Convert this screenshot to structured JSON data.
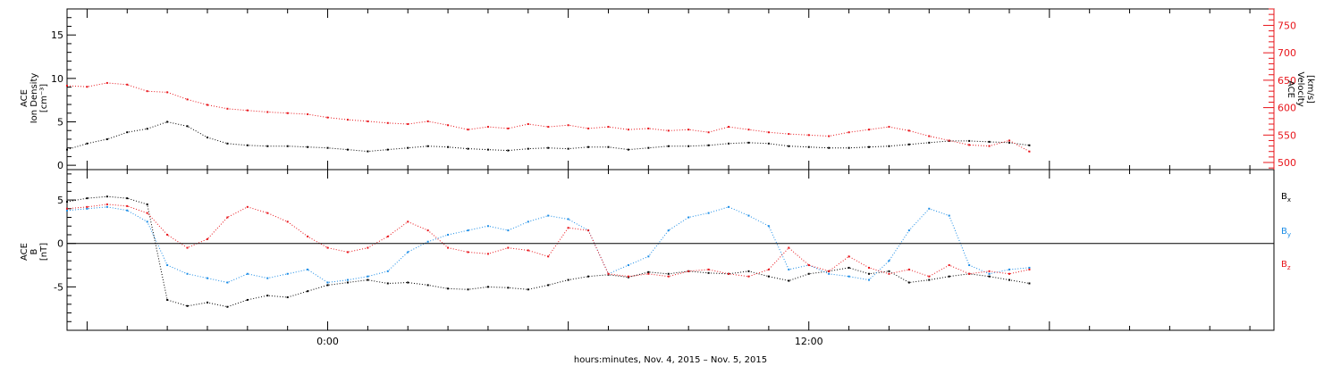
{
  "colors": {
    "black": "#000000",
    "red": "#e8141a",
    "blue": "#1a8ce6",
    "axis_red": "#e8141a"
  },
  "x_axis": {
    "title": "hours:minutes, Nov.  4, 2015 – Nov.  5, 2015",
    "range_hours": [
      -6.5,
      23.6
    ],
    "tick_labels": [
      {
        "hours": 0,
        "label": "0:00"
      },
      {
        "hours": 12,
        "label": "12:00"
      }
    ]
  },
  "chart_data": [
    {
      "type": "scatter",
      "panel": "top",
      "left_ylabel": [
        "ACE",
        "Ion Density",
        "[cm⁻³]"
      ],
      "right_ylabel": [
        "ACE",
        "Velocity",
        "[km/s]"
      ],
      "left_ylim": [
        -0.5,
        18
      ],
      "left_ticks": [
        0,
        5,
        10,
        15
      ],
      "right_ylim": [
        487,
        780
      ],
      "right_ticks": [
        500,
        550,
        600,
        650,
        700,
        750
      ],
      "series": [
        {
          "axis": "left",
          "color": "black",
          "x": [
            -6.5,
            -6,
            -5.5,
            -5,
            -4.5,
            -4,
            -3.5,
            -3,
            -2.5,
            -2,
            -1.5,
            -1,
            -0.5,
            0,
            0.5,
            1,
            1.5,
            2,
            2.5,
            3,
            3.5,
            4,
            4.5,
            5,
            5.5,
            6,
            6.5,
            7,
            7.5,
            8,
            8.5,
            9,
            9.5,
            10,
            10.5,
            11,
            11.5,
            12,
            12.5,
            13,
            13.5,
            14,
            14.5,
            15,
            15.5,
            16,
            16.5,
            17,
            17.5
          ],
          "y": [
            1.8,
            2.5,
            3,
            3.8,
            4.2,
            5,
            4.5,
            3.2,
            2.5,
            2.3,
            2.2,
            2.2,
            2.1,
            2,
            1.8,
            1.6,
            1.8,
            2,
            2.2,
            2.1,
            1.9,
            1.8,
            1.7,
            1.9,
            2,
            1.9,
            2.1,
            2.1,
            1.8,
            2,
            2.2,
            2.2,
            2.3,
            2.5,
            2.6,
            2.5,
            2.2,
            2.1,
            2,
            2,
            2.1,
            2.2,
            2.4,
            2.6,
            2.8,
            2.8,
            2.7,
            2.6,
            2.3
          ]
        },
        {
          "axis": "right",
          "color": "red",
          "x": [
            -6.5,
            -6,
            -5.5,
            -5,
            -4.5,
            -4,
            -3.5,
            -3,
            -2.5,
            -2,
            -1.5,
            -1,
            -0.5,
            0,
            0.5,
            1,
            1.5,
            2,
            2.5,
            3,
            3.5,
            4,
            4.5,
            5,
            5.5,
            6,
            6.5,
            7,
            7.5,
            8,
            8.5,
            9,
            9.5,
            10,
            10.5,
            11,
            11.5,
            12,
            12.5,
            13,
            13.5,
            14,
            14.5,
            15,
            15.5,
            16,
            16.5,
            17,
            17.5
          ],
          "y": [
            640,
            638,
            645,
            642,
            630,
            628,
            615,
            605,
            598,
            595,
            592,
            590,
            588,
            582,
            578,
            575,
            572,
            570,
            575,
            568,
            560,
            565,
            562,
            570,
            565,
            568,
            562,
            565,
            560,
            562,
            558,
            560,
            555,
            565,
            560,
            555,
            552,
            550,
            548,
            555,
            560,
            565,
            558,
            548,
            540,
            532,
            530,
            540,
            520
          ]
        }
      ]
    },
    {
      "type": "scatter",
      "panel": "bottom",
      "left_ylabel": [
        "ACE",
        "B",
        "[nT]"
      ],
      "ylim": [
        -10,
        8.5
      ],
      "ticks": [
        -5,
        0,
        5
      ],
      "zero_line": true,
      "legend": {
        "placement": "right",
        "entries": [
          {
            "label": "B",
            "subscript": "x",
            "color": "black"
          },
          {
            "label": "B",
            "subscript": "y",
            "color": "blue"
          },
          {
            "label": "B",
            "subscript": "z",
            "color": "red"
          }
        ]
      },
      "series": [
        {
          "name": "Bx",
          "color": "black",
          "x": [
            -6.5,
            -6,
            -5.5,
            -5,
            -4.5,
            -4,
            -3.5,
            -3,
            -2.5,
            -2,
            -1.5,
            -1,
            -0.5,
            0,
            0.5,
            1,
            1.5,
            2,
            2.5,
            3,
            3.5,
            4,
            4.5,
            5,
            5.5,
            6,
            6.5,
            7,
            7.5,
            8,
            8.5,
            9,
            9.5,
            10,
            10.5,
            11,
            11.5,
            12,
            12.5,
            13,
            13.5,
            14,
            14.5,
            15,
            15.5,
            16,
            16.5,
            17,
            17.5
          ],
          "y": [
            4.8,
            5.2,
            5.4,
            5.2,
            4.5,
            -6.5,
            -7.2,
            -6.8,
            -7.3,
            -6.5,
            -6,
            -6.2,
            -5.5,
            -4.8,
            -4.5,
            -4.2,
            -4.6,
            -4.5,
            -4.8,
            -5.2,
            -5.3,
            -5,
            -5.1,
            -5.3,
            -4.8,
            -4.2,
            -3.8,
            -3.6,
            -3.9,
            -3.3,
            -3.5,
            -3.2,
            -3.4,
            -3.5,
            -3.2,
            -3.8,
            -4.3,
            -3.5,
            -3.2,
            -2.8,
            -3.5,
            -3.2,
            -4.5,
            -4.2,
            -3.8,
            -3.5,
            -3.8,
            -4.2,
            -4.6
          ]
        },
        {
          "name": "By",
          "color": "blue",
          "x": [
            -6.5,
            -6,
            -5.5,
            -5,
            -4.5,
            -4,
            -3.5,
            -3,
            -2.5,
            -2,
            -1.5,
            -1,
            -0.5,
            0,
            0.5,
            1,
            1.5,
            2,
            2.5,
            3,
            3.5,
            4,
            4.5,
            5,
            5.5,
            6,
            6.5,
            7,
            7.5,
            8,
            8.5,
            9,
            9.5,
            10,
            10.5,
            11,
            11.5,
            12,
            12.5,
            13,
            13.5,
            14,
            14.5,
            15,
            15.5,
            16,
            16.5,
            17,
            17.5
          ],
          "y": [
            3.8,
            4,
            4.2,
            3.8,
            2.5,
            -2.5,
            -3.5,
            -4,
            -4.5,
            -3.5,
            -4,
            -3.5,
            -3,
            -4.5,
            -4.2,
            -3.8,
            -3.2,
            -1,
            0.2,
            1,
            1.5,
            2,
            1.5,
            2.5,
            3.2,
            2.8,
            1.5,
            -3.5,
            -2.5,
            -1.5,
            1.5,
            3,
            3.5,
            4.2,
            3.2,
            2,
            -3,
            -2.5,
            -3.5,
            -3.8,
            -4.2,
            -2,
            1.5,
            4,
            3.2,
            -2.5,
            -3.5,
            -3,
            -2.8
          ]
        },
        {
          "name": "Bz",
          "color": "red",
          "x": [
            -6.5,
            -6,
            -5.5,
            -5,
            -4.5,
            -4,
            -3.5,
            -3,
            -2.5,
            -2,
            -1.5,
            -1,
            -0.5,
            0,
            0.5,
            1,
            1.5,
            2,
            2.5,
            3,
            3.5,
            4,
            4.5,
            5,
            5.5,
            6,
            6.5,
            7,
            7.5,
            8,
            8.5,
            9,
            9.5,
            10,
            10.5,
            11,
            11.5,
            12,
            12.5,
            13,
            13.5,
            14,
            14.5,
            15,
            15.5,
            16,
            16.5,
            17,
            17.5
          ],
          "y": [
            4,
            4.2,
            4.5,
            4.3,
            3.5,
            1,
            -0.5,
            0.5,
            3,
            4.2,
            3.5,
            2.5,
            0.8,
            -0.5,
            -1,
            -0.5,
            0.8,
            2.5,
            1.5,
            -0.5,
            -1,
            -1.2,
            -0.5,
            -0.8,
            -1.5,
            1.8,
            1.5,
            -3.5,
            -3.8,
            -3.5,
            -3.8,
            -3.2,
            -3,
            -3.5,
            -3.8,
            -3,
            -0.5,
            -2.5,
            -3.2,
            -1.5,
            -2.8,
            -3.5,
            -3,
            -3.8,
            -2.5,
            -3.5,
            -3.2,
            -3.5,
            -3
          ]
        }
      ]
    }
  ]
}
